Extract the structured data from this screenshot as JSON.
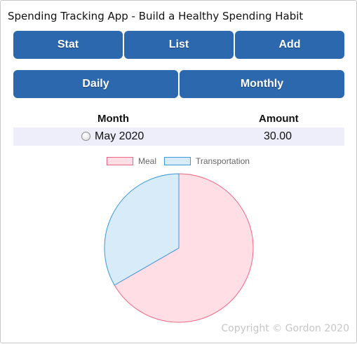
{
  "app": {
    "title": "Spending Tracking App - Build a Healthy Spending Habit"
  },
  "nav": {
    "stat": "Stat",
    "list": "List",
    "add": "Add"
  },
  "period": {
    "daily": "Daily",
    "monthly": "Monthly"
  },
  "table": {
    "headers": {
      "month": "Month",
      "amount": "Amount"
    },
    "rows": [
      {
        "month": "May 2020",
        "amount": "30.00"
      }
    ]
  },
  "chart_data": {
    "type": "pie",
    "categories": [
      "Meal",
      "Transportation"
    ],
    "values": [
      20,
      10
    ],
    "colors": {
      "fill": [
        "#ffdfe5",
        "#d7ebf9"
      ],
      "border": [
        "#f06784",
        "#3b9ad9"
      ]
    },
    "legend": "top"
  },
  "footer": {
    "copyright": "Copyright © Gordon 2020"
  }
}
